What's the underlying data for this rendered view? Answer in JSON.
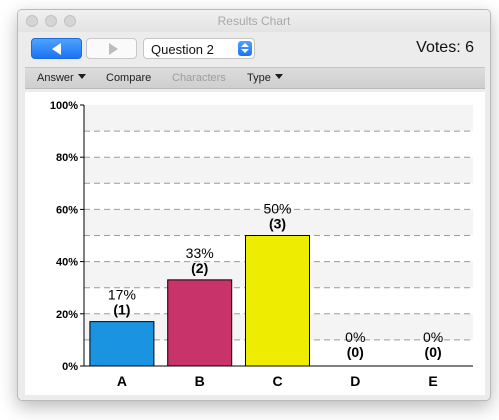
{
  "window": {
    "title": "Results Chart"
  },
  "toolbar": {
    "question_select": "Question 2",
    "votes": "Votes: 6"
  },
  "menubar": {
    "answer": "Answer",
    "compare": "Compare",
    "characters": "Characters",
    "type": "Type"
  },
  "colors": {
    "A": "#1a94e0",
    "B": "#c8336a",
    "C": "#eeec00",
    "D": "#888888",
    "E": "#888888"
  },
  "chart_data": {
    "type": "bar",
    "categories": [
      "A",
      "B",
      "C",
      "D",
      "E"
    ],
    "values": [
      17,
      33,
      50,
      0,
      0
    ],
    "counts": [
      1,
      2,
      3,
      0,
      0
    ],
    "value_labels": [
      "17%",
      "33%",
      "50%",
      "0%",
      "0%"
    ],
    "count_labels": [
      "(1)",
      "(2)",
      "(3)",
      "(0)",
      "(0)"
    ],
    "ylim": [
      0,
      100
    ],
    "yticks": [
      "0%",
      "20%",
      "40%",
      "60%",
      "80%",
      "100%"
    ],
    "grid": "dashed horizontal every 10%",
    "title": "",
    "xlabel": "",
    "ylabel": ""
  }
}
